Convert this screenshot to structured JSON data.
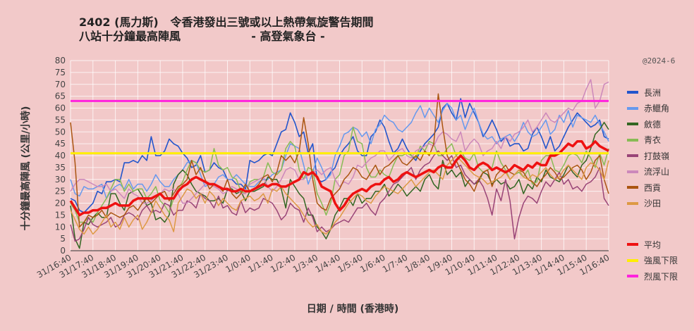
{
  "title_line1": "2402 (馬力斯)   令香港發出三號或以上熱帶氣旋警告期間",
  "title_line2": "八站十分鐘最高陣風                  - 高登氣象台 -",
  "credit": "@2024-6",
  "chart_data": {
    "type": "line",
    "title": "2402 (馬力斯)   令香港發出三號或以上熱帶氣旋警告期間 八站十分鐘最高陣風 - 高登氣象台 -",
    "xlabel": "日期  /  時間  (香港時)",
    "ylabel": "十分鐘最高陣風  (公里/小時)",
    "ylim": [
      0,
      80
    ],
    "yticks": [
      0,
      5,
      10,
      15,
      20,
      25,
      30,
      35,
      40,
      45,
      50,
      55,
      60,
      65,
      70,
      75,
      80
    ],
    "x_tick_labels": [
      "31/16:40",
      "31/17:40",
      "31/18:40",
      "31/19:40",
      "31/20:40",
      "31/21:40",
      "31/22:40",
      "31/23:40",
      "1/0:40",
      "1/1:40",
      "1/2:40",
      "1/3:40",
      "1/4:40",
      "1/5:40",
      "1/6:40",
      "1/7:40",
      "1/8:40",
      "1/9:40",
      "1/10:40",
      "1/11:40",
      "1/12:40",
      "1/13:40",
      "1/14:40",
      "1/15:40",
      "1/16:40"
    ],
    "grid": true,
    "legend_position": "right",
    "series": [
      {
        "name": "長洲",
        "color": "#2255cc",
        "width": 1.6,
        "values": [
          22,
          21,
          17,
          16,
          18,
          20,
          25,
          24,
          29,
          29,
          30,
          29,
          37,
          37,
          38,
          37,
          40,
          38,
          48,
          40,
          40,
          42,
          47,
          45,
          44,
          41,
          39,
          35,
          36,
          40,
          33,
          34,
          37,
          35,
          34,
          30,
          30,
          28,
          28,
          26,
          38,
          37,
          38,
          40,
          41,
          40,
          45,
          50,
          51,
          58,
          54,
          48,
          50,
          41,
          45,
          30,
          29,
          30,
          33,
          35,
          40,
          43,
          45,
          48,
          42,
          40,
          40,
          48,
          50,
          55,
          52,
          46,
          41,
          43,
          47,
          43,
          40,
          38,
          42,
          45,
          47,
          49,
          52,
          60,
          62,
          58,
          55,
          64,
          56,
          62,
          58,
          54,
          48,
          51,
          55,
          51,
          46,
          48,
          44,
          45,
          45,
          42,
          43,
          49,
          52,
          48,
          43,
          48,
          42,
          44,
          48,
          52,
          55,
          58,
          56,
          54,
          52,
          53,
          55,
          48,
          47
        ]
      },
      {
        "name": "赤鱲角",
        "color": "#6699ee",
        "width": 1.5,
        "values": [
          30,
          24,
          23,
          27,
          26,
          26,
          27,
          28,
          22,
          25,
          27,
          28,
          26,
          30,
          26,
          28,
          28,
          25,
          28,
          32,
          29,
          27,
          27,
          30,
          32,
          34,
          37,
          38,
          37,
          32,
          27,
          28,
          28,
          31,
          32,
          30,
          30,
          32,
          30,
          28,
          27,
          27,
          29,
          30,
          30,
          32,
          33,
          34,
          40,
          45,
          44,
          43,
          36,
          28,
          33,
          39,
          35,
          30,
          32,
          40,
          44,
          49,
          50,
          52,
          51,
          48,
          50,
          45,
          51,
          53,
          57,
          55,
          54,
          51,
          50,
          52,
          54,
          58,
          61,
          56,
          60,
          57,
          54,
          59,
          62,
          60,
          55,
          57,
          51,
          56,
          60,
          54,
          49,
          47,
          48,
          45,
          47,
          48,
          49,
          46,
          49,
          54,
          50,
          48,
          49,
          52,
          55,
          49,
          51,
          57,
          54,
          59,
          52,
          57,
          56,
          55,
          54,
          57,
          53,
          50,
          46
        ]
      },
      {
        "name": "斂德",
        "color": "#336622",
        "width": 1.5,
        "values": [
          19,
          5,
          1,
          12,
          11,
          14,
          16,
          14,
          14,
          24,
          24,
          20,
          17,
          24,
          25,
          26,
          23,
          19,
          20,
          13,
          14,
          12,
          15,
          28,
          32,
          34,
          32,
          28,
          25,
          24,
          23,
          21,
          21,
          22,
          20,
          26,
          26,
          24,
          25,
          21,
          25,
          25,
          26,
          27,
          31,
          30,
          30,
          26,
          18,
          30,
          27,
          24,
          22,
          15,
          15,
          10,
          8,
          5,
          9,
          15,
          18,
          22,
          22,
          19,
          24,
          20,
          22,
          22,
          25,
          25,
          28,
          23,
          25,
          28,
          26,
          23,
          25,
          27,
          25,
          30,
          32,
          28,
          26,
          38,
          32,
          34,
          31,
          33,
          27,
          30,
          28,
          29,
          33,
          32,
          28,
          30,
          28,
          29,
          26,
          27,
          30,
          24,
          28,
          26,
          31,
          29,
          34,
          31,
          30,
          29,
          32,
          36,
          33,
          31,
          36,
          38,
          43,
          49,
          51,
          54,
          51
        ]
      },
      {
        "name": "青衣",
        "color": "#88bb55",
        "width": 1.5,
        "values": [
          20,
          17,
          12,
          12,
          14,
          12,
          16,
          19,
          22,
          26,
          30,
          30,
          25,
          28,
          25,
          26,
          26,
          22,
          24,
          27,
          21,
          19,
          16,
          22,
          26,
          29,
          34,
          38,
          37,
          34,
          33,
          34,
          43,
          36,
          34,
          35,
          31,
          30,
          25,
          24,
          29,
          30,
          30,
          31,
          37,
          33,
          32,
          34,
          43,
          46,
          44,
          34,
          30,
          35,
          34,
          24,
          20,
          15,
          20,
          30,
          32,
          40,
          42,
          52,
          46,
          45,
          35,
          31,
          31,
          34,
          32,
          31,
          36,
          40,
          40,
          41,
          40,
          39,
          44,
          42,
          46,
          45,
          40,
          40,
          43,
          45,
          40,
          42,
          39,
          38,
          41,
          35,
          33,
          34,
          35,
          42,
          37,
          34,
          30,
          32,
          33,
          31,
          34,
          28,
          29,
          38,
          40,
          40,
          34,
          33,
          36,
          40,
          41,
          40,
          37,
          42,
          39,
          35,
          41,
          36,
          43
        ]
      },
      {
        "name": "打鼓嶺",
        "color": "#994477",
        "width": 1.5,
        "values": [
          11,
          4,
          5,
          9,
          14,
          11,
          10,
          11,
          12,
          14,
          10,
          11,
          15,
          16,
          15,
          13,
          17,
          19,
          16,
          17,
          16,
          20,
          19,
          15,
          17,
          17,
          21,
          20,
          18,
          24,
          22,
          21,
          18,
          23,
          18,
          19,
          16,
          15,
          21,
          16,
          18,
          17,
          18,
          22,
          21,
          20,
          17,
          13,
          15,
          20,
          18,
          17,
          12,
          18,
          14,
          8,
          10,
          8,
          9,
          11,
          12,
          13,
          12,
          15,
          18,
          18,
          20,
          17,
          15,
          20,
          22,
          25,
          28,
          29,
          31,
          33,
          35,
          30,
          34,
          36,
          37,
          40,
          42,
          40,
          38,
          40,
          35,
          36,
          32,
          30,
          28,
          30,
          27,
          22,
          15,
          26,
          21,
          30,
          21,
          5,
          14,
          20,
          23,
          22,
          20,
          25,
          29,
          27,
          30,
          33,
          28,
          30,
          26,
          27,
          25,
          28,
          29,
          31,
          35,
          22,
          19
        ]
      },
      {
        "name": "流浮山",
        "color": "#cc88bb",
        "width": 1.5,
        "values": [
          25,
          28,
          30,
          30,
          29,
          28,
          27,
          27,
          28,
          25,
          26,
          24,
          22,
          26,
          24,
          23,
          20,
          20,
          21,
          23,
          24,
          26,
          25,
          26,
          24,
          20,
          20,
          22,
          24,
          26,
          28,
          28,
          27,
          26,
          24,
          25,
          27,
          26,
          24,
          24,
          28,
          29,
          30,
          31,
          27,
          25,
          27,
          30,
          34,
          35,
          34,
          30,
          30,
          32,
          33,
          34,
          32,
          34,
          35,
          30,
          27,
          29,
          28,
          31,
          36,
          35,
          37,
          39,
          40,
          42,
          42,
          38,
          40,
          42,
          43,
          40,
          39,
          42,
          43,
          44,
          45,
          44,
          48,
          50,
          49,
          47,
          46,
          50,
          42,
          45,
          47,
          45,
          40,
          42,
          43,
          46,
          43,
          48,
          46,
          49,
          50,
          52,
          55,
          50,
          52,
          55,
          58,
          55,
          54,
          56,
          58,
          60,
          59,
          62,
          63,
          68,
          72,
          60,
          63,
          70,
          71
        ]
      },
      {
        "name": "西貢",
        "color": "#aa5511",
        "width": 1.5,
        "values": [
          54,
          37,
          10,
          12,
          15,
          14,
          15,
          17,
          14,
          16,
          15,
          14,
          15,
          18,
          19,
          17,
          20,
          22,
          20,
          22,
          24,
          25,
          21,
          24,
          27,
          28,
          30,
          38,
          32,
          35,
          30,
          26,
          28,
          27,
          25,
          30,
          24,
          22,
          24,
          28,
          25,
          26,
          28,
          31,
          32,
          29,
          33,
          40,
          38,
          40,
          37,
          42,
          56,
          45,
          30,
          20,
          18,
          17,
          22,
          24,
          26,
          30,
          32,
          35,
          34,
          31,
          30,
          33,
          36,
          32,
          35,
          36,
          38,
          40,
          37,
          36,
          38,
          40,
          38,
          42,
          40,
          45,
          66,
          52,
          40,
          36,
          38,
          34,
          30,
          28,
          25,
          30,
          33,
          34,
          27,
          32,
          34,
          36,
          33,
          32,
          34,
          33,
          30,
          29,
          27,
          30,
          32,
          35,
          33,
          30,
          31,
          33,
          35,
          36,
          34,
          30,
          33,
          38,
          40,
          30,
          24
        ]
      },
      {
        "name": "沙田",
        "color": "#dd9944",
        "width": 1.5,
        "values": [
          17,
          13,
          9,
          7,
          10,
          7,
          9,
          12,
          15,
          10,
          12,
          9,
          14,
          10,
          13,
          15,
          9,
          12,
          16,
          21,
          18,
          15,
          13,
          8,
          20,
          23,
          26,
          25,
          22,
          24,
          20,
          25,
          23,
          19,
          22,
          20,
          18,
          17,
          21,
          22,
          23,
          21,
          22,
          24,
          20,
          26,
          25,
          27,
          24,
          22,
          20,
          18,
          15,
          12,
          10,
          11,
          8,
          7,
          9,
          12,
          14,
          17,
          20,
          22,
          24,
          23,
          21,
          20,
          23,
          25,
          27,
          26,
          25,
          24,
          26,
          28,
          30,
          27,
          29,
          31,
          33,
          34,
          32,
          30,
          36,
          38,
          40,
          38,
          36,
          34,
          32,
          31,
          30,
          28,
          29,
          30,
          31,
          33,
          30,
          32,
          34,
          31,
          30,
          32,
          31,
          33,
          35,
          32,
          30,
          31,
          34,
          36,
          34,
          32,
          30,
          35,
          37,
          36,
          34,
          30,
          38
        ]
      },
      {
        "name": "平均",
        "color": "#ee1111",
        "width": 3.5,
        "values": [
          21,
          18,
          15,
          16,
          16,
          17,
          17,
          18,
          18,
          19,
          20,
          19,
          19,
          19,
          21,
          22,
          22,
          22,
          22,
          23,
          24,
          22,
          22,
          22,
          25,
          27,
          28,
          30,
          31,
          30,
          29,
          28,
          28,
          27,
          26,
          26,
          25,
          25,
          26,
          25,
          25,
          26,
          27,
          28,
          27,
          28,
          28,
          27,
          27,
          28,
          29,
          30,
          33,
          32,
          33,
          31,
          27,
          26,
          25,
          20,
          17,
          19,
          22,
          24,
          25,
          26,
          25,
          27,
          28,
          28,
          30,
          31,
          29,
          30,
          32,
          33,
          32,
          31,
          32,
          33,
          34,
          33,
          35,
          36,
          35,
          35,
          38,
          40,
          38,
          35,
          34,
          36,
          37,
          36,
          34,
          35,
          34,
          33,
          34,
          36,
          35,
          34,
          36,
          35,
          37,
          36,
          36,
          40,
          40,
          41,
          43,
          45,
          44,
          46,
          46,
          43,
          44,
          46,
          44,
          43,
          42
        ]
      }
    ],
    "reference_lines": [
      {
        "name": "強風下限",
        "color": "#ffee00",
        "value": 41
      },
      {
        "name": "烈風下限",
        "color": "#ff22dd",
        "value": 63
      }
    ]
  },
  "legend": {
    "group1": [
      {
        "label": "長洲",
        "color": "#2255cc"
      },
      {
        "label": "赤鱲角",
        "color": "#6699ee"
      },
      {
        "label": "斂德",
        "color": "#336622"
      },
      {
        "label": "青衣",
        "color": "#88bb55"
      },
      {
        "label": "打鼓嶺",
        "color": "#994477"
      },
      {
        "label": "流浮山",
        "color": "#cc88bb"
      },
      {
        "label": "西貢",
        "color": "#aa5511"
      },
      {
        "label": "沙田",
        "color": "#dd9944"
      }
    ],
    "group2": [
      {
        "label": "平均",
        "color": "#ee1111"
      },
      {
        "label": "強風下限",
        "color": "#ffee00"
      },
      {
        "label": "烈風下限",
        "color": "#ff22dd"
      }
    ]
  }
}
